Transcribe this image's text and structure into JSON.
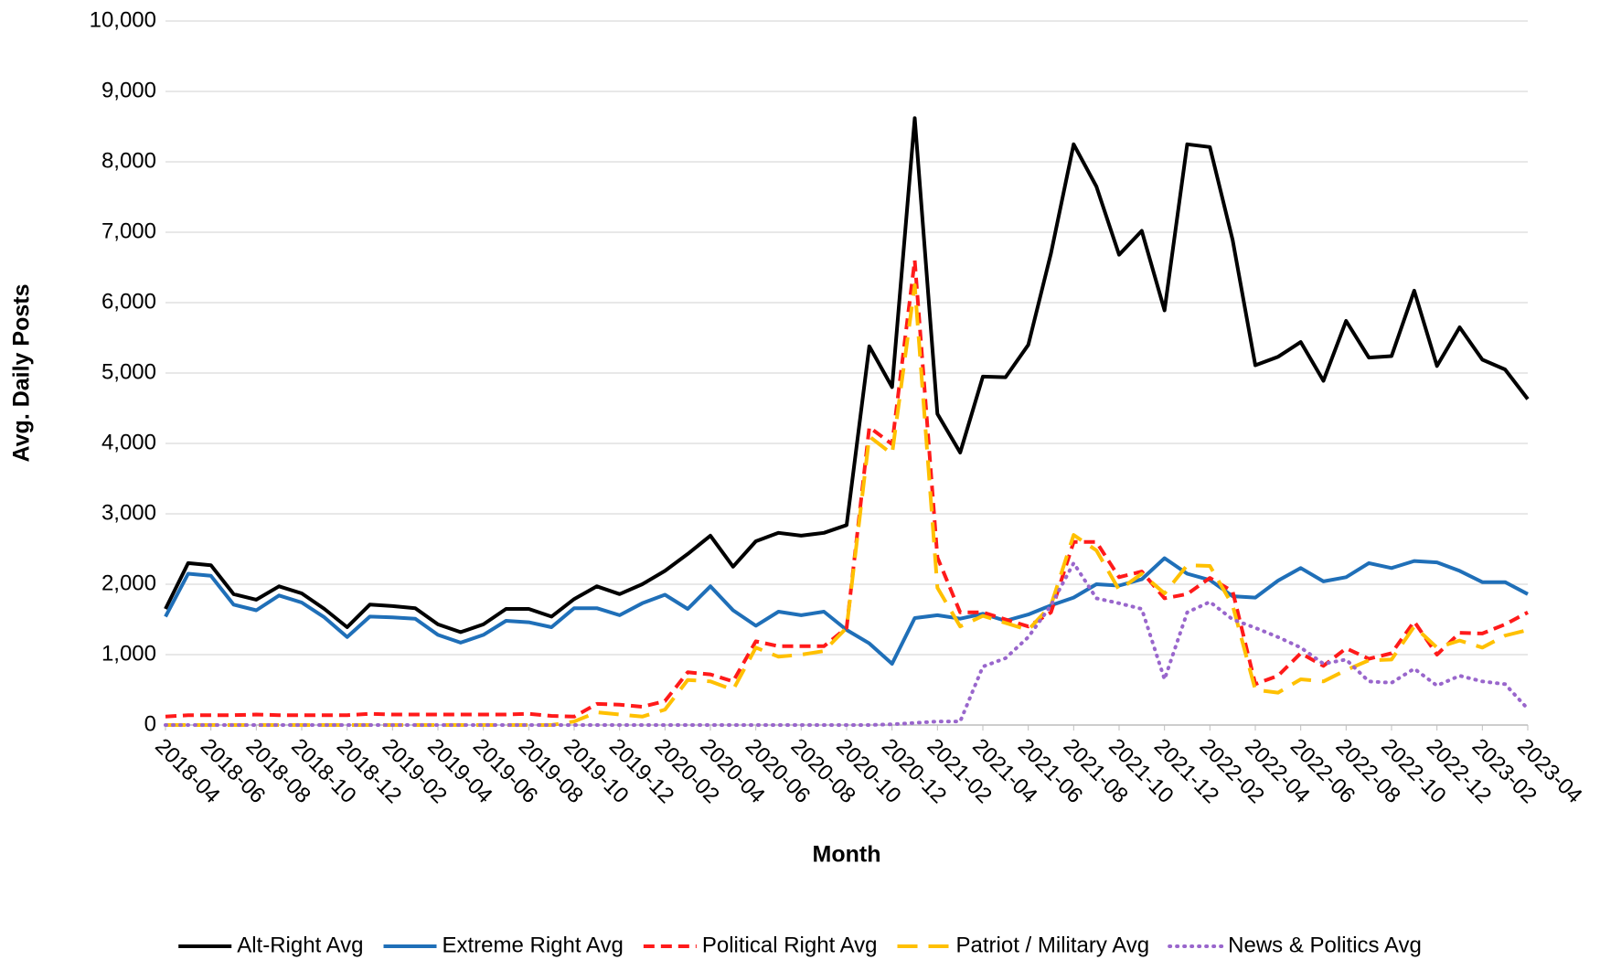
{
  "chart_data": {
    "type": "line",
    "x_label": "Month",
    "y_label": "Avg. Daily Posts",
    "categories": [
      "2018-04",
      null,
      "2018-06",
      null,
      "2018-08",
      null,
      "2018-10",
      null,
      "2018-12",
      null,
      "2019-02",
      null,
      "2019-04",
      null,
      "2019-06",
      null,
      "2019-08",
      null,
      "2019-10",
      null,
      "2019-12",
      null,
      "2020-02",
      null,
      "2020-04",
      null,
      "2020-06",
      null,
      "2020-08",
      null,
      "2020-10",
      null,
      "2020-12",
      null,
      "2021-02",
      null,
      "2021-04",
      null,
      "2021-06",
      null,
      "2021-08",
      null,
      "2021-10",
      null,
      "2021-12",
      null,
      "2022-02",
      null,
      "2022-04",
      null,
      "2022-06",
      null,
      "2022-08",
      null,
      "2022-10",
      null,
      "2022-12",
      null,
      "2023-02",
      null,
      "2023-04"
    ],
    "ylim": [
      0,
      10000
    ],
    "yticks": [
      0,
      {
        "value": 1000,
        "label": "1,000"
      },
      {
        "value": 2000,
        "label": "2,000"
      },
      {
        "value": 3000,
        "label": "3,000"
      },
      {
        "value": 4000,
        "label": "4,000"
      },
      {
        "value": 5000,
        "label": "5,000"
      },
      {
        "value": 6000,
        "label": "6,000"
      },
      {
        "value": 7000,
        "label": "7,000"
      },
      {
        "value": 8000,
        "label": "8,000"
      },
      {
        "value": 9000,
        "label": "9,000"
      },
      {
        "value": 10000,
        "label": "10,000"
      }
    ],
    "grid": true,
    "legend": "bottom",
    "series": [
      {
        "name": "Alt-Right Avg",
        "color": "#000000",
        "line_style": "solid",
        "values": [
          1650,
          2300,
          2270,
          1860,
          1780,
          1970,
          1870,
          1650,
          1390,
          1710,
          1690,
          1660,
          1430,
          1320,
          1430,
          1650,
          1650,
          1540,
          1790,
          1970,
          1860,
          2000,
          2190,
          2430,
          2690,
          2250,
          2610,
          2730,
          2690,
          2730,
          2840,
          5380,
          4800,
          8620,
          4420,
          3870,
          4950,
          4940,
          5400,
          6700,
          8250,
          7650,
          6680,
          7020,
          5890,
          8250,
          8210,
          6890,
          5110,
          5230,
          5440,
          4890,
          5740,
          5220,
          5240,
          6170,
          5100,
          5650,
          5190,
          5050,
          4630
        ]
      },
      {
        "name": "Extreme Right Avg",
        "color": "#1f6fb8",
        "line_style": "solid",
        "values": [
          1540,
          2150,
          2120,
          1710,
          1630,
          1840,
          1740,
          1530,
          1250,
          1540,
          1530,
          1510,
          1280,
          1170,
          1280,
          1480,
          1460,
          1390,
          1660,
          1660,
          1560,
          1730,
          1850,
          1650,
          1970,
          1630,
          1410,
          1610,
          1560,
          1610,
          1350,
          1160,
          870,
          1520,
          1560,
          1510,
          1580,
          1480,
          1570,
          1700,
          1810,
          2000,
          1980,
          2070,
          2370,
          2150,
          2060,
          1830,
          1810,
          2050,
          2230,
          2040,
          2100,
          2300,
          2230,
          2330,
          2310,
          2190,
          2030,
          2030,
          1860
        ]
      },
      {
        "name": "Political Right Avg",
        "color": "#ff1a1a",
        "line_style": "dashed",
        "values": [
          120,
          140,
          140,
          140,
          150,
          140,
          140,
          140,
          140,
          160,
          150,
          150,
          150,
          150,
          150,
          150,
          160,
          130,
          120,
          300,
          290,
          260,
          340,
          750,
          720,
          620,
          1190,
          1120,
          1120,
          1120,
          1380,
          4230,
          3990,
          6600,
          2380,
          1600,
          1600,
          1500,
          1400,
          1600,
          2600,
          2600,
          2100,
          2180,
          1800,
          1860,
          2090,
          1900,
          580,
          700,
          1020,
          840,
          1090,
          940,
          1020,
          1470,
          1000,
          1310,
          1300,
          1430,
          1600
        ]
      },
      {
        "name": "Patriot / Military Avg",
        "color": "#ffc000",
        "line_style": "long-dashed",
        "values": [
          0,
          0,
          0,
          0,
          0,
          0,
          0,
          0,
          0,
          0,
          0,
          0,
          0,
          0,
          0,
          0,
          0,
          0,
          50,
          180,
          150,
          120,
          220,
          640,
          620,
          500,
          1100,
          970,
          1000,
          1050,
          1380,
          4100,
          3850,
          6250,
          1950,
          1400,
          1550,
          1450,
          1350,
          1700,
          2700,
          2480,
          1920,
          2150,
          1870,
          2270,
          2260,
          1700,
          500,
          460,
          650,
          620,
          780,
          920,
          930,
          1400,
          1100,
          1200,
          1100,
          1270,
          1350
        ]
      },
      {
        "name": "News & Politics Avg",
        "color": "#9966cc",
        "line_style": "dotted",
        "values": [
          0,
          0,
          0,
          0,
          0,
          0,
          0,
          0,
          0,
          0,
          0,
          0,
          0,
          0,
          0,
          0,
          0,
          0,
          0,
          0,
          0,
          0,
          0,
          0,
          0,
          0,
          0,
          0,
          0,
          0,
          0,
          0,
          10,
          30,
          50,
          50,
          830,
          950,
          1250,
          1700,
          2300,
          1800,
          1730,
          1650,
          650,
          1600,
          1750,
          1500,
          1380,
          1250,
          1100,
          870,
          930,
          620,
          600,
          800,
          560,
          700,
          620,
          580,
          230
        ]
      }
    ]
  }
}
